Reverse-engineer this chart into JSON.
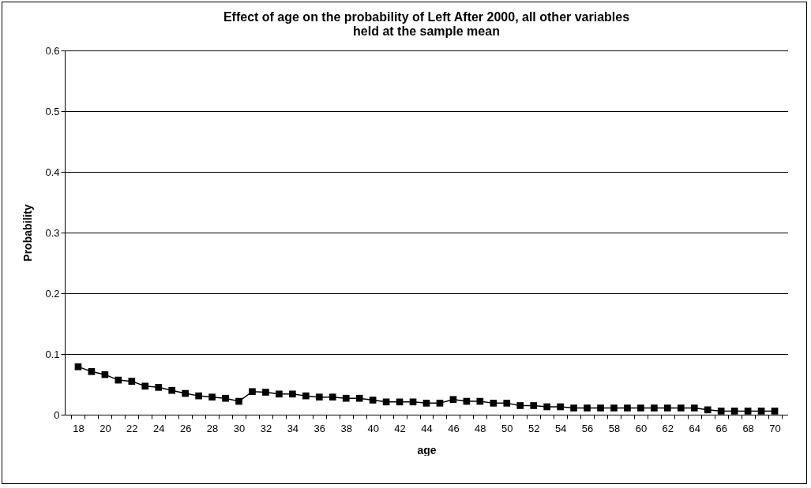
{
  "chart_data": {
    "type": "line",
    "title": "Effect of age on the probability of Left After 2000, all other variables held at the sample mean",
    "xlabel": "age",
    "ylabel": "Probability",
    "categories": [
      "18",
      null,
      "20",
      null,
      "22",
      null,
      "24",
      null,
      "26",
      null,
      "28",
      null,
      "30",
      null,
      "32",
      null,
      "34",
      null,
      "36",
      null,
      "38",
      null,
      "40",
      null,
      "42",
      null,
      "44",
      null,
      "46",
      null,
      "48",
      null,
      "50",
      null,
      "52",
      null,
      "54",
      null,
      "56",
      null,
      "58",
      null,
      "60",
      null,
      "62",
      null,
      "64",
      null,
      "66",
      null,
      "68",
      null,
      "70"
    ],
    "series": [
      {
        "color": "#000000",
        "values": [
          0.079,
          0.071,
          0.066,
          0.057,
          0.055,
          0.047,
          0.045,
          0.04,
          0.035,
          0.031,
          0.029,
          0.027,
          0.022,
          0.038,
          0.037,
          0.034,
          0.034,
          0.031,
          0.029,
          0.029,
          0.027,
          0.027,
          0.024,
          0.021,
          0.021,
          0.021,
          0.019,
          0.019,
          0.025,
          0.022,
          0.022,
          0.019,
          0.019,
          0.015,
          0.015,
          0.013,
          0.013,
          0.011,
          0.011,
          0.011,
          0.011,
          0.011,
          0.011,
          0.011,
          0.011,
          0.011,
          0.011,
          0.008,
          0.006,
          0.006,
          0.006,
          0.006,
          0.006
        ]
      }
    ],
    "ylim": [
      0,
      0.6
    ],
    "yticks": [
      0,
      0.1,
      0.2,
      0.3,
      0.4,
      0.5,
      0.6
    ],
    "grid": "y",
    "marker": "square",
    "line_style": "solid",
    "legend": false
  }
}
